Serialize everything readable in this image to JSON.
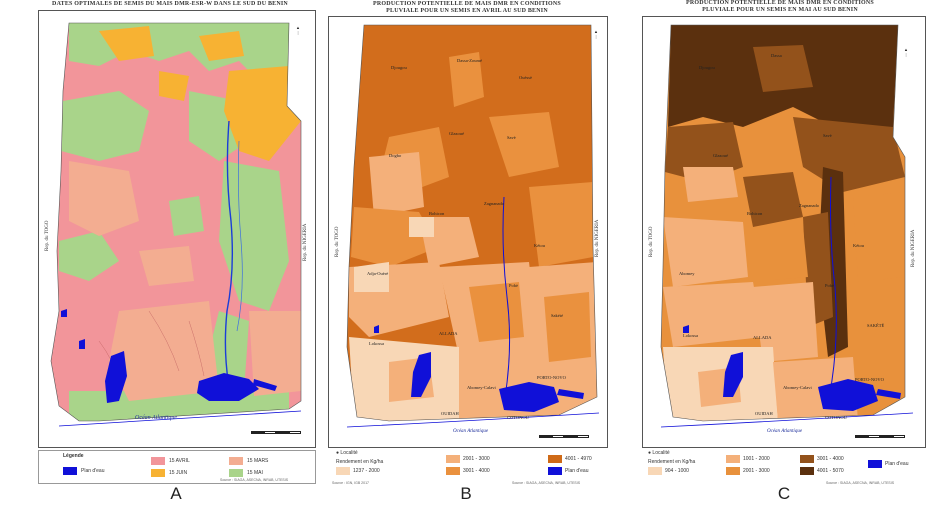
{
  "panels": [
    {
      "id": "A",
      "title": "DATES OPTIMALES DE SEMIS DU MAIS DMR-ESR-W DANS LE SUD DU BENIN",
      "label": "A",
      "left_country": "Rep. du TOGO",
      "right_country": "Rep. du NIGERIA",
      "ocean": "Océan Atlantique",
      "legend_title": "Légende",
      "legend": [
        {
          "label": "Plan d'eau",
          "color": "#1010d8"
        },
        {
          "label": "15 AVRIL",
          "color": "#f2959a"
        },
        {
          "label": "15 JUIN",
          "color": "#f7b233"
        },
        {
          "label": "15 MARS",
          "color": "#f3ad91"
        },
        {
          "label": "15 MAI",
          "color": "#a9d48a"
        }
      ],
      "footer": "Source : SIAGA, ASECNA, INRAB, UTESIS"
    },
    {
      "id": "B",
      "title": "PRODUCTION POTENTIELLE DE MAIS DMR EN CONDITIONS PLUVIALE POUR UN SEMIS EN AVRIL AU SUD BENIN",
      "label": "B",
      "left_country": "Rep. du TOGO",
      "right_country": "Rep. du NIGERIA",
      "ocean": "Océan Atlantique",
      "towns": [
        "Djougou",
        "Dassa-Zoumé",
        "Ouèssè",
        "Savè",
        "Glazoué",
        "Dogbo",
        "Bohicon",
        "Zagnanado",
        "Kétou",
        "Pobè",
        "Sakété",
        "Adja-Ouèrè",
        "ALLADA",
        "Abomey-Calavi",
        "PORTO-NOVO",
        "OUIDAH",
        "COTONOU",
        "Lokossa"
      ],
      "legend_title": "Rendement en Kg/ha",
      "locality_label": "Localité",
      "legend": [
        {
          "label": "1237 - 2000",
          "color": "#f8d7b6"
        },
        {
          "label": "2001 - 3000",
          "color": "#f4b07a"
        },
        {
          "label": "3001 - 4000",
          "color": "#ea913e"
        },
        {
          "label": "4001 - 4970",
          "color": "#cf6a17"
        },
        {
          "label": "Plan d'eau",
          "color": "#1010d8"
        }
      ],
      "footer_left": "Source : IGN, IGB 2017",
      "footer_right": "Source : SIAGA, ASECNA, INRAB, UTESIS"
    },
    {
      "id": "C",
      "title": "PRODUCTION POTENTIELLE DE MAIS DMR EN CONDITIONS PLUVIALE POUR UN SEMIS EN MAI AU SUD BENIN",
      "label": "C",
      "left_country": "Rep. du TOGO",
      "right_country": "Rep. du NIGERIA",
      "ocean": "Océan Atlantique",
      "towns": [
        "Djougou",
        "Dassa",
        "Savè",
        "Glazoué",
        "Bohicon",
        "Zagnanado",
        "Kétou",
        "Abomey",
        "Pobè",
        "Lokossa",
        "SAKÉTÉ",
        "ALLADA",
        "Abomey-Calavi",
        "PORTO-NOVO",
        "OUIDAH",
        "COTONOU"
      ],
      "legend_title": "Rendement en Kg/ha",
      "locality_label": "Localité",
      "legend": [
        {
          "label": "904 - 1000",
          "color": "#f8d7b6"
        },
        {
          "label": "1001 - 2000",
          "color": "#f4b07a"
        },
        {
          "label": "2001 - 3000",
          "color": "#e8913c"
        },
        {
          "label": "3001 - 4000",
          "color": "#93521b"
        },
        {
          "label": "4001 - 5070",
          "color": "#5b300e"
        },
        {
          "label": "Plan d'eau",
          "color": "#1010d8"
        }
      ],
      "footer": "Source : SIAGA, ASECNA, INRAB, UTESIS"
    }
  ]
}
